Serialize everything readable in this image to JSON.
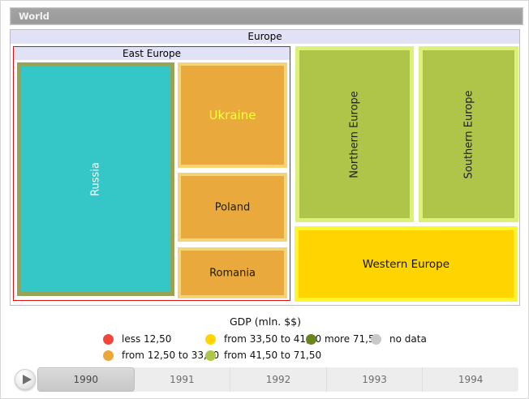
{
  "breadcrumb": {
    "world_label": "World"
  },
  "treemap": {
    "europe": {
      "label": "Europe",
      "header_bg": "#e2e2f6"
    },
    "east_europe": {
      "label": "East Europe",
      "border_color": "#d91212"
    },
    "nodes": {
      "russia": {
        "label": "Russia",
        "fill": "#35c6c7",
        "stroke": "#97a457",
        "label_color": "#ffffff",
        "state": "selected"
      },
      "ukraine": {
        "label": "Ukraine",
        "fill": "#eaa93c",
        "stroke": "#f6d475",
        "label_color": "#fcff3d"
      },
      "poland": {
        "label": "Poland",
        "fill": "#eaa93c",
        "stroke": "#f6d475",
        "label_color": "#221a00"
      },
      "romania": {
        "label": "Romania",
        "fill": "#eaa93c",
        "stroke": "#f6d475",
        "label_color": "#221a00"
      },
      "northern": {
        "label": "Northern Europe",
        "fill": "#afc54a",
        "stroke": "#def07c",
        "label_color": "#1e1e1e"
      },
      "southern": {
        "label": "Southern Europe",
        "fill": "#afc54a",
        "stroke": "#def07c",
        "label_color": "#1e1e1e"
      },
      "western": {
        "label": "Western Europe",
        "fill": "#ffd400",
        "stroke": "#fff52e",
        "label_color": "#111111"
      }
    }
  },
  "legend": {
    "title": "GDP (mln. $$)",
    "items": [
      {
        "label": "less 12,50",
        "color": "#f2453c"
      },
      {
        "label": "from 33,50 to 41,50",
        "color": "#ffd400"
      },
      {
        "label": "more 71,50",
        "color": "#68851f"
      },
      {
        "label": "no data",
        "color": "#c9c9c9"
      },
      {
        "label": "from 12,50 to 33,50",
        "color": "#e9a838"
      },
      {
        "label": "from 41,50 to 71,50",
        "color": "#afc64b"
      }
    ]
  },
  "timeline": {
    "years": [
      "1990",
      "1991",
      "1992",
      "1993",
      "1994"
    ],
    "selected_year": "1990"
  },
  "chart_data": {
    "type": "treemap",
    "title": "",
    "legend_title": "GDP (mln. $$)",
    "legend_bins": [
      "less 12,50",
      "from 12,50 to 33,50",
      "from 33,50 to 41,50",
      "from 41,50 to 71,50",
      "more 71,50",
      "no data"
    ],
    "breadcrumb_root": "World",
    "timeline_years": [
      "1990",
      "1991",
      "1992",
      "1993",
      "1994"
    ],
    "selected_year": "1990",
    "tree": {
      "name": "Europe",
      "children": [
        {
          "name": "East Europe",
          "children": [
            {
              "name": "Russia",
              "state": "selected (teal highlight)"
            },
            {
              "name": "Ukraine",
              "color_bin": "from 12,50 to 33,50"
            },
            {
              "name": "Poland",
              "color_bin": "from 12,50 to 33,50"
            },
            {
              "name": "Romania",
              "color_bin": "from 12,50 to 33,50"
            }
          ]
        },
        {
          "name": "Northern Europe",
          "color_bin": "from 41,50 to 71,50"
        },
        {
          "name": "Southern Europe",
          "color_bin": "from 41,50 to 71,50"
        },
        {
          "name": "Western Europe",
          "color_bin": "from 33,50 to 41,50"
        }
      ]
    }
  }
}
